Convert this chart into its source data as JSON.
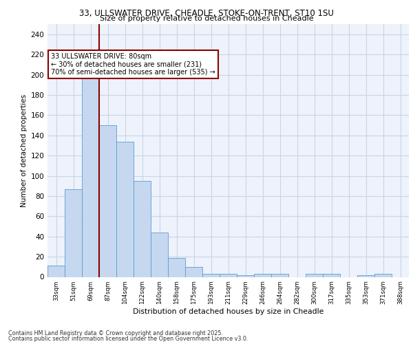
{
  "title1": "33, ULLSWATER DRIVE, CHEADLE, STOKE-ON-TRENT, ST10 1SU",
  "title2": "Size of property relative to detached houses in Cheadle",
  "xlabel": "Distribution of detached houses by size in Cheadle",
  "ylabel": "Number of detached properties",
  "categories": [
    "33sqm",
    "51sqm",
    "69sqm",
    "87sqm",
    "104sqm",
    "122sqm",
    "140sqm",
    "158sqm",
    "175sqm",
    "193sqm",
    "211sqm",
    "229sqm",
    "246sqm",
    "264sqm",
    "282sqm",
    "300sqm",
    "317sqm",
    "335sqm",
    "353sqm",
    "371sqm",
    "388sqm"
  ],
  "values": [
    11,
    87,
    196,
    150,
    134,
    95,
    44,
    19,
    10,
    3,
    3,
    2,
    3,
    3,
    0,
    3,
    3,
    0,
    2,
    3,
    0
  ],
  "bar_color": "#c5d8f0",
  "bar_edge_color": "#5b9bd5",
  "grid_color": "#c8d4e8",
  "bg_color": "#eef2fb",
  "vline_color": "#8b0000",
  "annotation_text": "33 ULLSWATER DRIVE: 80sqm\n← 30% of detached houses are smaller (231)\n70% of semi-detached houses are larger (535) →",
  "annotation_box_color": "#ffffff",
  "annotation_box_edge": "#8b0000",
  "footer1": "Contains HM Land Registry data © Crown copyright and database right 2025.",
  "footer2": "Contains public sector information licensed under the Open Government Licence v3.0.",
  "ylim": [
    0,
    250
  ],
  "yticks": [
    0,
    20,
    40,
    60,
    80,
    100,
    120,
    140,
    160,
    180,
    200,
    220,
    240
  ]
}
